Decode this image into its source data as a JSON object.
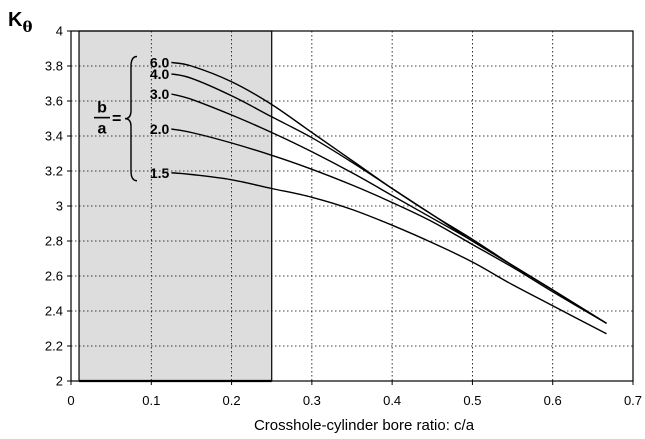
{
  "chart_data": {
    "type": "line",
    "ylabel_main": "K",
    "ylabel_sub": "θ",
    "xlabel": "Crosshole-cylinder bore ratio: c/a",
    "xlim": [
      0,
      0.7
    ],
    "ylim": [
      2,
      4
    ],
    "x_ticks": [
      "0",
      "0.1",
      "0.2",
      "0.3",
      "0.4",
      "0.5",
      "0.6",
      "0.7"
    ],
    "y_ticks": [
      "2",
      "2.2",
      "2.4",
      "2.6",
      "2.8",
      "3",
      "3.2",
      "3.4",
      "3.6",
      "3.8",
      "4"
    ],
    "grid": "dotted",
    "shaded_region": {
      "x": [
        0.01,
        0.25
      ],
      "color": "#dddddd"
    },
    "ratio_label": {
      "numerator": "b",
      "denominator": "a",
      "equals": "="
    },
    "series": [
      {
        "name": "6.0",
        "x": [
          0.125,
          0.15,
          0.2,
          0.25,
          0.3,
          0.35,
          0.4,
          0.45,
          0.5,
          0.55,
          0.6,
          0.667
        ],
        "y": [
          3.82,
          3.8,
          3.71,
          3.58,
          3.42,
          3.26,
          3.1,
          2.95,
          2.81,
          2.66,
          2.52,
          2.33
        ]
      },
      {
        "name": "4.0",
        "x": [
          0.125,
          0.15,
          0.2,
          0.25,
          0.3,
          0.35,
          0.4,
          0.45,
          0.5,
          0.55,
          0.6,
          0.667
        ],
        "y": [
          3.755,
          3.73,
          3.63,
          3.51,
          3.39,
          3.25,
          3.1,
          2.95,
          2.8,
          2.66,
          2.52,
          2.33
        ]
      },
      {
        "name": "3.0",
        "x": [
          0.125,
          0.15,
          0.2,
          0.25,
          0.3,
          0.35,
          0.4,
          0.45,
          0.5,
          0.55,
          0.6,
          0.667
        ],
        "y": [
          3.64,
          3.61,
          3.52,
          3.42,
          3.31,
          3.19,
          3.06,
          2.93,
          2.8,
          2.66,
          2.52,
          2.33
        ]
      },
      {
        "name": "2.0",
        "x": [
          0.125,
          0.15,
          0.2,
          0.25,
          0.3,
          0.35,
          0.4,
          0.45,
          0.5,
          0.55,
          0.6,
          0.667
        ],
        "y": [
          3.44,
          3.42,
          3.36,
          3.29,
          3.21,
          3.12,
          3.02,
          2.91,
          2.78,
          2.65,
          2.51,
          2.33
        ]
      },
      {
        "name": "1.5",
        "x": [
          0.125,
          0.15,
          0.2,
          0.25,
          0.3,
          0.35,
          0.4,
          0.45,
          0.5,
          0.55,
          0.6,
          0.667
        ],
        "y": [
          3.19,
          3.18,
          3.15,
          3.1,
          3.05,
          2.98,
          2.89,
          2.79,
          2.68,
          2.55,
          2.43,
          2.27
        ]
      }
    ]
  }
}
